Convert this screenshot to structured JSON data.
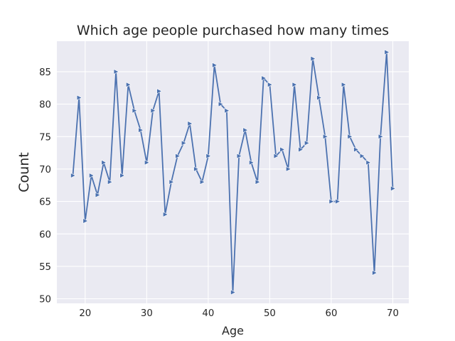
{
  "chart_data": {
    "type": "line",
    "title": "Which age people purchased how many times",
    "xlabel": "Age",
    "ylabel": "Count",
    "xlim": [
      15.4,
      72.6
    ],
    "ylim": [
      49.3,
      89.7
    ],
    "grid": true,
    "marker": "triangle-right",
    "colors": {
      "line": "#4c72b0",
      "plot_bg": "#eaeaf2",
      "grid": "#ffffff",
      "text": "#262626"
    },
    "x_ticks": [
      20,
      30,
      40,
      50,
      60,
      70
    ],
    "y_ticks": [
      50,
      55,
      60,
      65,
      70,
      75,
      80,
      85
    ],
    "series": [
      {
        "x": [
          18,
          19,
          20,
          21,
          22,
          23,
          24,
          25,
          26,
          27,
          28,
          29,
          30,
          31,
          32,
          33,
          34,
          35,
          36,
          37,
          38,
          39,
          40,
          41,
          42,
          43,
          44,
          45,
          46,
          47,
          48,
          49,
          50,
          51,
          52,
          53,
          54,
          55,
          56,
          57,
          58,
          59,
          60,
          61,
          62,
          63,
          64,
          65,
          66,
          67,
          68,
          69,
          70
        ],
        "y": [
          69,
          81,
          62,
          69,
          66,
          71,
          68,
          85,
          69,
          83,
          79,
          76,
          71,
          79,
          82,
          63,
          68,
          72,
          74,
          77,
          70,
          68,
          72,
          86,
          80,
          79,
          51,
          72,
          76,
          71,
          68,
          84,
          83,
          72,
          73,
          70,
          83,
          73,
          74,
          87,
          81,
          75,
          65,
          65,
          83,
          75,
          73,
          72,
          71,
          54,
          75,
          88,
          67
        ]
      }
    ]
  }
}
